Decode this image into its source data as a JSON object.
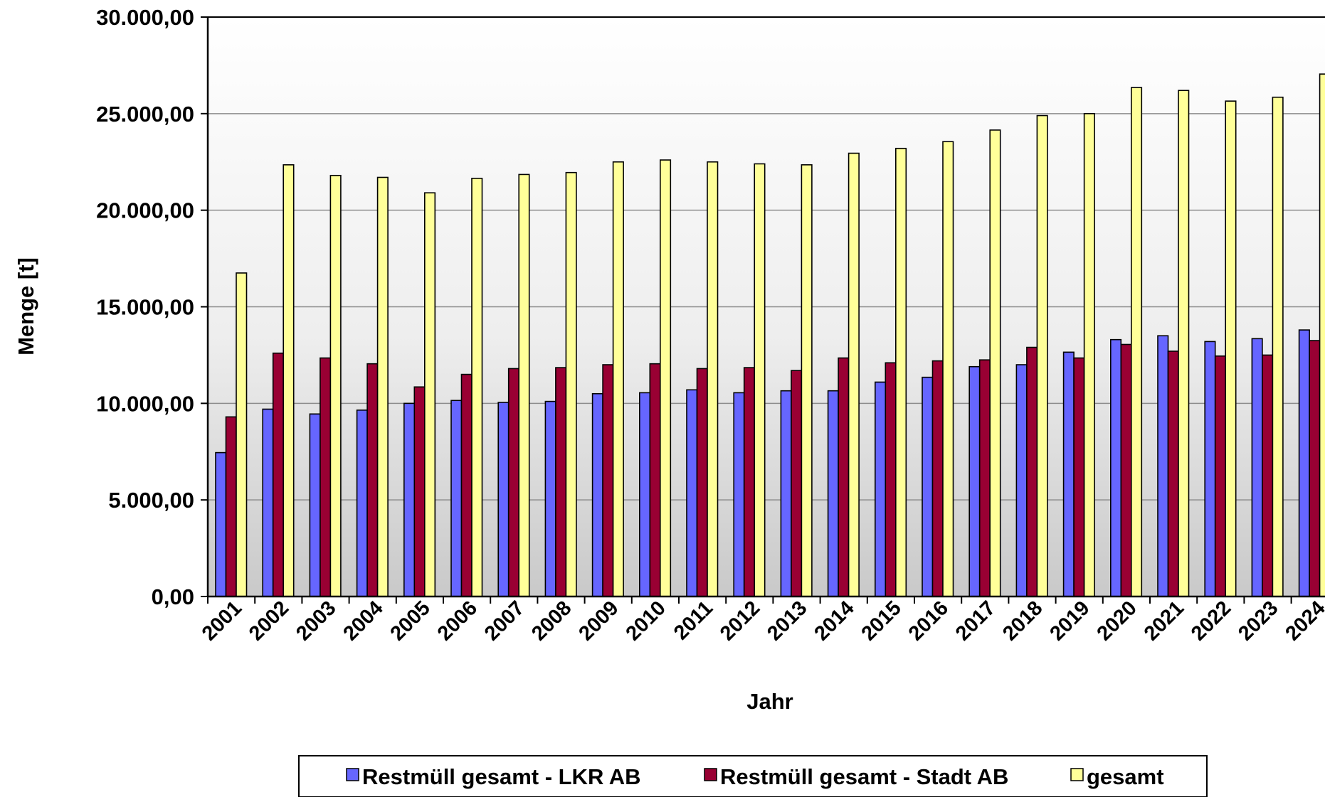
{
  "chart_data": {
    "type": "bar",
    "title": "",
    "xlabel": "Jahr",
    "ylabel": "Menge [t]",
    "ylim": [
      0,
      30000
    ],
    "y_ticks": [
      "0,00",
      "5.000,00",
      "10.000,00",
      "15.000,00",
      "20.000,00",
      "25.000,00",
      "30.000,00"
    ],
    "y_tick_values": [
      0,
      5000,
      10000,
      15000,
      20000,
      25000,
      30000
    ],
    "grid": true,
    "legend_position": "bottom",
    "categories": [
      "2001",
      "2002",
      "2003",
      "2004",
      "2005",
      "2006",
      "2007",
      "2008",
      "2009",
      "2010",
      "2011",
      "2012",
      "2013",
      "2014",
      "2015",
      "2016",
      "2017",
      "2018",
      "2019",
      "2020",
      "2021",
      "2022",
      "2023",
      "2024"
    ],
    "series": [
      {
        "name": "Restmüll gesamt - LKR AB",
        "color": "#6666ff",
        "values": [
          7450,
          9700,
          9450,
          9650,
          10000,
          10150,
          10050,
          10100,
          10500,
          10550,
          10700,
          10550,
          10650,
          10650,
          11100,
          11350,
          11900,
          12000,
          12650,
          13300,
          13500,
          13200,
          13350,
          13800
        ]
      },
      {
        "name": "Restmüll gesamt - Stadt AB",
        "color": "#990033",
        "values": [
          9300,
          12600,
          12350,
          12050,
          10850,
          11500,
          11800,
          11850,
          12000,
          12050,
          11800,
          11850,
          11700,
          12350,
          12100,
          12200,
          12250,
          12900,
          12350,
          13050,
          12700,
          12450,
          12500,
          13250
        ]
      },
      {
        "name": "gesamt",
        "color": "#ffff99",
        "values": [
          16750,
          22350,
          21800,
          21700,
          20900,
          21650,
          21850,
          21950,
          22500,
          22600,
          22500,
          22400,
          22350,
          22950,
          23200,
          23550,
          24150,
          24900,
          25000,
          26350,
          26200,
          25650,
          25850,
          27050
        ]
      }
    ]
  }
}
